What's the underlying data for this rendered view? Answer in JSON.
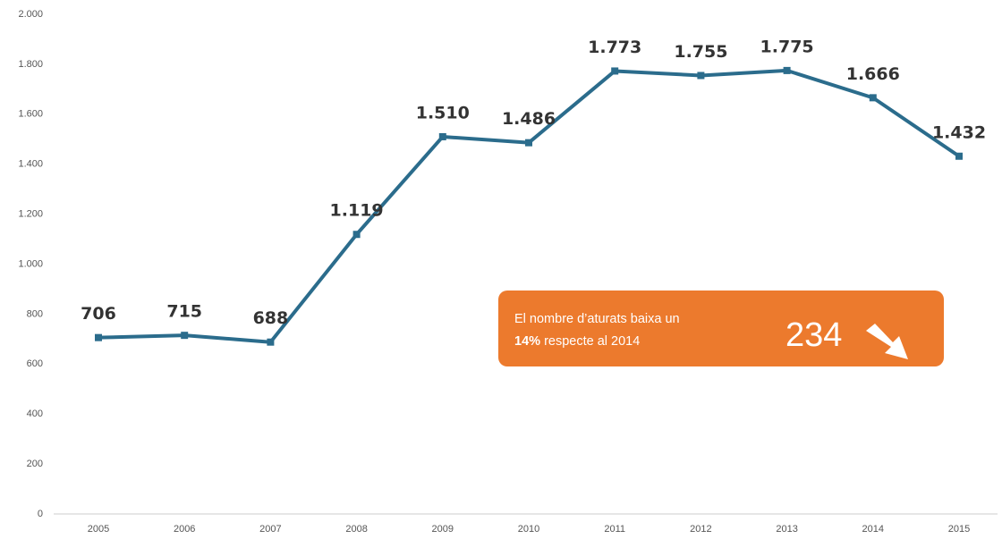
{
  "chart_data": {
    "type": "line",
    "categories": [
      "2005",
      "2006",
      "2007",
      "2008",
      "2009",
      "2010",
      "2011",
      "2012",
      "2013",
      "2014",
      "2015"
    ],
    "series": [
      {
        "color": "#2b6c8c",
        "values": [
          706,
          715,
          688,
          1119,
          1510,
          1486,
          1773,
          1755,
          1775,
          1666,
          1432
        ],
        "value_labels": [
          "706",
          "715",
          "688",
          "1.119",
          "1.510",
          "1.486",
          "1.773",
          "1.755",
          "1.775",
          "1.666",
          "1.432"
        ]
      }
    ],
    "ylim": [
      0,
      2000
    ],
    "yticks": [
      0,
      200,
      400,
      600,
      800,
      {
        "value": 1000,
        "label": "1.000"
      },
      {
        "value": 1200,
        "label": "1.200"
      },
      {
        "value": 1400,
        "label": "1.400"
      },
      {
        "value": 1600,
        "label": "1.600"
      },
      {
        "value": 1800,
        "label": "1.800"
      },
      {
        "value": 2000,
        "label": "2.000"
      }
    ],
    "grid": false,
    "annotation": {
      "line1": "El nombre d’aturats baixa un",
      "bold": "14%",
      "line2": "respecte al 2014",
      "value": "234"
    }
  }
}
